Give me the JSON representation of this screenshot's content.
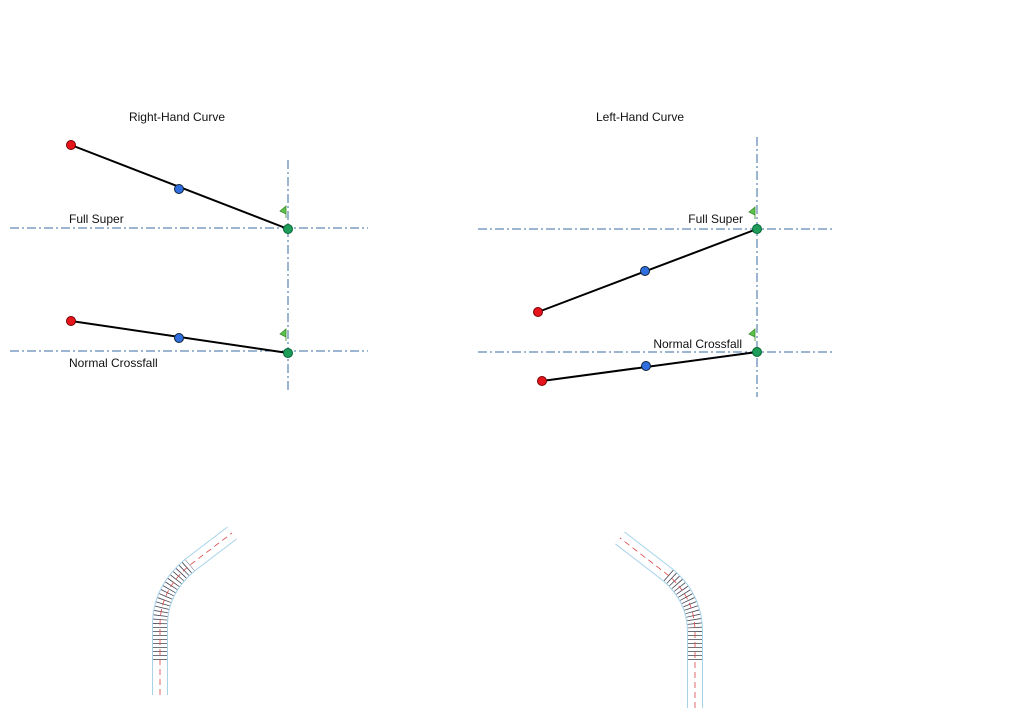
{
  "diagrams": [
    {
      "title": "Right-Hand Curve",
      "full_super": "Full Super",
      "normal_crossfall": "Normal Crossfall"
    },
    {
      "title": "Left-Hand Curve",
      "full_super": "Full Super",
      "normal_crossfall": "Normal Crossfall"
    }
  ]
}
